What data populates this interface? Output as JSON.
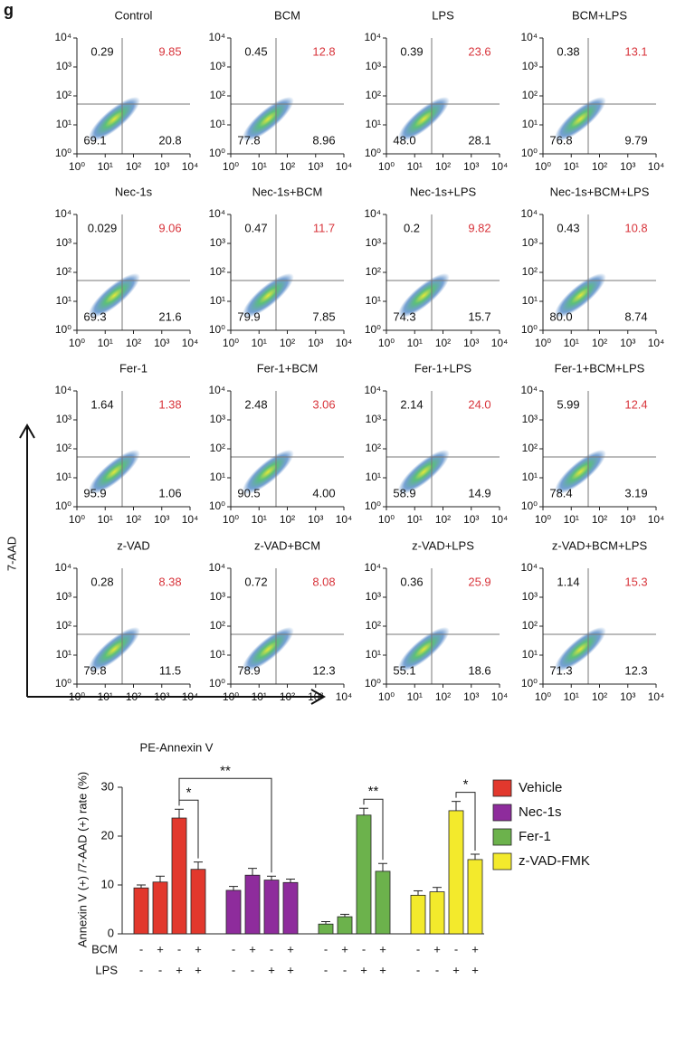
{
  "panel_label": "g",
  "flow": {
    "type": "quadrant",
    "x_label": "PE-Annexin V",
    "y_label": "7-AAD",
    "log_scale": true,
    "lim": [
      1,
      10000
    ],
    "ticks": [
      {
        "value": 1,
        "label": "10⁰"
      },
      {
        "value": 10,
        "label": "10¹"
      },
      {
        "value": 100,
        "label": "10²"
      },
      {
        "value": 1000,
        "label": "10³"
      },
      {
        "value": 10000,
        "label": "10⁴"
      }
    ],
    "ur_color": "#d8343b",
    "panels": [
      {
        "title": "Control",
        "values": [
          0.29,
          9.85,
          69.1,
          20.8
        ]
      },
      {
        "title": "BCM",
        "values": [
          0.45,
          12.8,
          77.8,
          8.96
        ]
      },
      {
        "title": "LPS",
        "values": [
          0.39,
          23.6,
          48.0,
          28.1
        ],
        "value_labels": [
          "0.39",
          "23.6",
          "48.0",
          "28.1"
        ]
      },
      {
        "title": "BCM+LPS",
        "values": [
          0.38,
          13.1,
          76.8,
          9.79
        ]
      },
      {
        "title": "Nec-1s",
        "values": [
          0.029,
          9.06,
          69.3,
          21.6
        ]
      },
      {
        "title": "Nec-1s+BCM",
        "values": [
          0.47,
          11.7,
          79.9,
          7.85
        ]
      },
      {
        "title": "Nec-1s+LPS",
        "values": [
          0.2,
          9.82,
          74.3,
          15.7
        ]
      },
      {
        "title": "Nec-1s+BCM+LPS",
        "values": [
          0.43,
          10.8,
          80.0,
          8.74
        ],
        "value_labels": [
          "0.43",
          "10.8",
          "80.0",
          "8.74"
        ]
      },
      {
        "title": "Fer-1",
        "values": [
          1.64,
          1.38,
          95.9,
          1.06
        ]
      },
      {
        "title": "Fer-1+BCM",
        "values": [
          2.48,
          3.06,
          90.5,
          4.0
        ],
        "value_labels": [
          "2.48",
          "3.06",
          "90.5",
          "4.00"
        ]
      },
      {
        "title": "Fer-1+LPS",
        "values": [
          2.14,
          24.0,
          58.9,
          14.9
        ],
        "value_labels": [
          "2.14",
          "24.0",
          "58.9",
          "14.9"
        ]
      },
      {
        "title": "Fer-1+BCM+LPS",
        "values": [
          5.99,
          12.4,
          78.4,
          3.19
        ]
      },
      {
        "title": "z-VAD",
        "values": [
          0.28,
          8.38,
          79.8,
          11.5
        ]
      },
      {
        "title": "z-VAD+BCM",
        "values": [
          0.72,
          8.08,
          78.9,
          12.3
        ]
      },
      {
        "title": "z-VAD+LPS",
        "values": [
          0.36,
          25.9,
          55.1,
          18.6
        ]
      },
      {
        "title": "z-VAD+BCM+LPS",
        "values": [
          1.14,
          15.3,
          71.3,
          12.3
        ]
      }
    ]
  },
  "chart_data": {
    "type": "bar",
    "y_label": "Annexin V (+) /7-AAD (+) rate (%)",
    "ylim": [
      0,
      30
    ],
    "yticks": [
      0,
      10,
      20,
      30
    ],
    "series": [
      {
        "name": "Vehicle",
        "color": "#e2382d",
        "values": [
          9.4,
          10.6,
          23.7,
          13.2
        ],
        "errors": [
          0.6,
          1.2,
          1.8,
          1.5
        ]
      },
      {
        "name": "Nec-1s",
        "color": "#8e2c9c",
        "values": [
          8.9,
          12.0,
          11.0,
          10.5
        ],
        "errors": [
          0.8,
          1.4,
          0.8,
          0.7
        ]
      },
      {
        "name": "Fer-1",
        "color": "#6cb24c",
        "values": [
          2.0,
          3.5,
          24.3,
          12.8
        ],
        "errors": [
          0.5,
          0.5,
          1.4,
          1.6
        ]
      },
      {
        "name": "z-VAD-FMK",
        "color": "#f3ea2c",
        "values": [
          7.9,
          8.6,
          25.2,
          15.2
        ],
        "errors": [
          0.9,
          0.9,
          1.9,
          1.1
        ]
      }
    ],
    "rows": [
      {
        "name": "BCM",
        "signs": [
          "-",
          "+",
          "-",
          "+"
        ]
      },
      {
        "name": "LPS",
        "signs": [
          "-",
          "-",
          "+",
          "+"
        ]
      }
    ],
    "brackets": [
      {
        "text": "*",
        "from": [
          0,
          2
        ],
        "to": [
          0,
          3
        ]
      },
      {
        "text": "**",
        "from": [
          0,
          2
        ],
        "to": [
          1,
          2
        ]
      },
      {
        "text": "**",
        "from": [
          2,
          2
        ],
        "to": [
          2,
          3
        ]
      },
      {
        "text": "*",
        "from": [
          3,
          2
        ],
        "to": [
          3,
          3
        ]
      }
    ]
  }
}
